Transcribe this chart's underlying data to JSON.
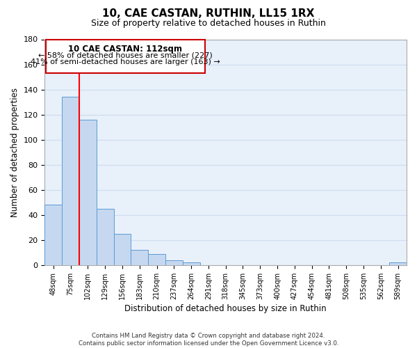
{
  "title": "10, CAE CASTAN, RUTHIN, LL15 1RX",
  "subtitle": "Size of property relative to detached houses in Ruthin",
  "xlabel": "Distribution of detached houses by size in Ruthin",
  "ylabel": "Number of detached properties",
  "bar_labels": [
    "48sqm",
    "75sqm",
    "102sqm",
    "129sqm",
    "156sqm",
    "183sqm",
    "210sqm",
    "237sqm",
    "264sqm",
    "291sqm",
    "318sqm",
    "345sqm",
    "373sqm",
    "400sqm",
    "427sqm",
    "454sqm",
    "481sqm",
    "508sqm",
    "535sqm",
    "562sqm",
    "589sqm"
  ],
  "bar_values": [
    48,
    134,
    116,
    45,
    25,
    12,
    9,
    4,
    2,
    0,
    0,
    0,
    0,
    0,
    0,
    0,
    0,
    0,
    0,
    0,
    2
  ],
  "bar_color": "#c5d8f0",
  "bar_edge_color": "#5b9bd5",
  "ylim": [
    0,
    180
  ],
  "yticks": [
    0,
    20,
    40,
    60,
    80,
    100,
    120,
    140,
    160,
    180
  ],
  "vline_color": "#ff0000",
  "annotation_title": "10 CAE CASTAN: 112sqm",
  "annotation_line1": "← 58% of detached houses are smaller (227)",
  "annotation_line2": "41% of semi-detached houses are larger (163) →",
  "footer_line1": "Contains HM Land Registry data © Crown copyright and database right 2024.",
  "footer_line2": "Contains public sector information licensed under the Open Government Licence v3.0.",
  "background_color": "#ffffff",
  "grid_color": "#ccddf0"
}
